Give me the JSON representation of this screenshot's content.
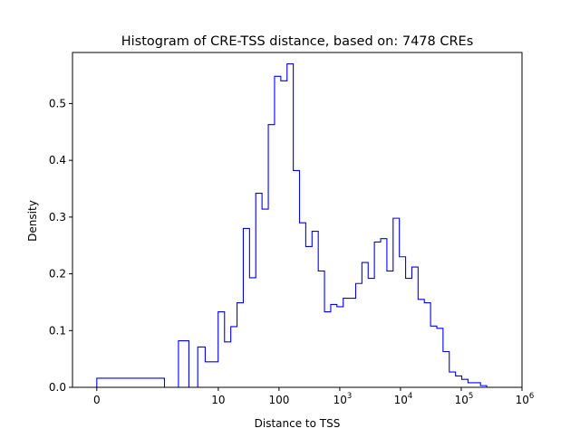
{
  "chart_data": {
    "type": "histogram",
    "title": "Histogram of CRE-TSS distance, based on: 7478 CREs",
    "xlabel": "Distance to TSS",
    "ylabel": "Density",
    "x_scale": "symlog",
    "xlim": [
      -0.4,
      1000000
    ],
    "ylim": [
      0,
      0.59
    ],
    "grid": false,
    "legend": "none",
    "line_color": "#0000ff",
    "x_ticks": [
      {
        "value": 0,
        "label": "0"
      },
      {
        "value": 10,
        "label": "10"
      },
      {
        "value": 100,
        "label": "100"
      },
      {
        "value": 1000,
        "label": "10",
        "sup": "3"
      },
      {
        "value": 10000,
        "label": "10",
        "sup": "4"
      },
      {
        "value": 100000,
        "label": "10",
        "sup": "5"
      },
      {
        "value": 1000000,
        "label": "10",
        "sup": "6"
      }
    ],
    "y_ticks": [
      {
        "value": 0.0,
        "label": "0.0"
      },
      {
        "value": 0.1,
        "label": "0.1"
      },
      {
        "value": 0.2,
        "label": "0.2"
      },
      {
        "value": 0.3,
        "label": "0.3"
      },
      {
        "value": 0.4,
        "label": "0.4"
      },
      {
        "value": 0.5,
        "label": "0.5"
      }
    ],
    "bin_edges": [
      0,
      1.3,
      2.21,
      3.28,
      4.59,
      6.09,
      7.91,
      9.95,
      12.67,
      16.06,
      20.37,
      25.8,
      32.7,
      41.4,
      52.5,
      66.6,
      84.4,
      107,
      135.5,
      171.6,
      217.5,
      275.5,
      349.3,
      442.2,
      560.3,
      710,
      899,
      1139.5,
      1443,
      1828,
      2316,
      2934,
      3717,
      4709,
      5966,
      7557,
      9575,
      12132,
      15365,
      19472,
      24666,
      31248,
      39584,
      50149,
      63525,
      80485,
      101958,
      129173,
      163640,
      207315,
      262626,
      332705,
      421470
    ],
    "values": [
      0.016,
      0.0,
      0.082,
      0.0,
      0.071,
      0.045,
      0.045,
      0.133,
      0.08,
      0.107,
      0.149,
      0.28,
      0.193,
      0.342,
      0.314,
      0.463,
      0.548,
      0.54,
      0.57,
      0.382,
      0.29,
      0.248,
      0.275,
      0.205,
      0.133,
      0.146,
      0.142,
      0.157,
      0.157,
      0.183,
      0.22,
      0.192,
      0.256,
      0.262,
      0.205,
      0.298,
      0.23,
      0.192,
      0.212,
      0.155,
      0.149,
      0.108,
      0.104,
      0.063,
      0.027,
      0.02,
      0.014,
      0.008,
      0.008,
      0.003,
      0.0,
      0.0
    ]
  }
}
